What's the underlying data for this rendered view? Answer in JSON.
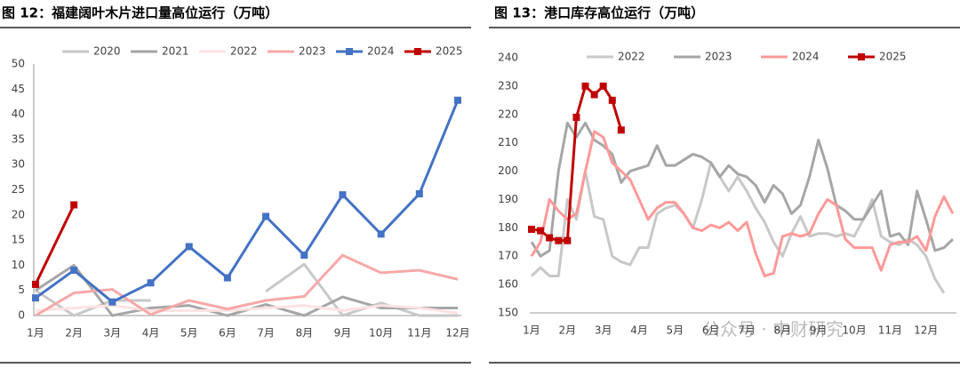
{
  "watermark": "公众号 · 中财研究",
  "chart_data": [
    {
      "type": "line",
      "title": "图 12：福建阔叶木片进口量高位运行（万吨）",
      "categories": [
        "1月",
        "2月",
        "3月",
        "4月",
        "5月",
        "6月",
        "7月",
        "8月",
        "9月",
        "10月",
        "11月",
        "12月"
      ],
      "ylim": [
        0,
        50
      ],
      "yticks": [
        0,
        5,
        10,
        15,
        20,
        25,
        30,
        35,
        40,
        45,
        50
      ],
      "grid": false,
      "legend": "top",
      "series": [
        {
          "name": "2020",
          "color": "#c8c8c8",
          "values": [
            5,
            0,
            3,
            3,
            null,
            null,
            4.8,
            10.2,
            0,
            2.5,
            0,
            0
          ]
        },
        {
          "name": "2021",
          "color": "#a6a6a6",
          "values": [
            5,
            10,
            0,
            1.5,
            2,
            0,
            2.2,
            0,
            3.7,
            1.5,
            1.5,
            1.5
          ]
        },
        {
          "name": "2022",
          "color": "#fde2e2",
          "values": [
            1,
            1.5,
            2,
            1,
            1,
            1,
            1.5,
            2,
            1,
            2,
            1.5,
            0.5
          ]
        },
        {
          "name": "2023",
          "color": "#f7a8a8",
          "values": [
            0,
            4.5,
            5.2,
            0.2,
            3,
            1.3,
            3,
            3.8,
            12,
            8.5,
            9,
            7.2
          ]
        },
        {
          "name": "2024",
          "color": "#4472c4",
          "marker": "square",
          "values": [
            3.5,
            9,
            2.7,
            6.5,
            13.7,
            7.5,
            19.7,
            12,
            24,
            16.2,
            24.2,
            42.8
          ]
        },
        {
          "name": "2025",
          "color": "#c00000",
          "marker": "square",
          "values": [
            6.2,
            22,
            null,
            null,
            null,
            null,
            null,
            null,
            null,
            null,
            null,
            null
          ]
        }
      ]
    },
    {
      "type": "line",
      "title": "图 13：港口库存高位运行（万吨）",
      "categories": [
        "1月",
        null,
        null,
        null,
        "2月",
        null,
        null,
        null,
        "3月",
        null,
        null,
        null,
        "4月",
        null,
        null,
        null,
        "5月",
        null,
        null,
        null,
        "6月",
        null,
        null,
        null,
        "7月",
        null,
        null,
        null,
        "8月",
        null,
        null,
        null,
        "9月",
        null,
        null,
        null,
        "10月",
        null,
        null,
        null,
        "11月",
        null,
        null,
        null,
        "12月",
        null,
        null,
        null
      ],
      "ylim": [
        150,
        240
      ],
      "yticks": [
        150,
        160,
        170,
        180,
        190,
        200,
        210,
        220,
        230,
        240
      ],
      "grid": false,
      "legend": "top",
      "series": [
        {
          "name": "2022",
          "color": "#c8c8c8",
          "values": [
            163,
            166,
            163,
            163,
            190,
            183,
            200,
            184,
            183,
            170,
            168,
            167,
            173,
            173,
            185,
            187,
            188,
            185,
            180,
            190,
            203,
            198,
            193,
            198,
            193,
            187,
            182,
            175,
            170,
            178,
            184,
            177,
            178,
            178,
            177,
            178,
            177,
            183,
            190,
            177,
            175,
            174,
            176,
            174,
            170,
            162,
            157,
            null
          ]
        },
        {
          "name": "2023",
          "color": "#a6a6a6",
          "values": [
            175,
            170,
            172,
            200,
            217,
            212,
            217,
            211,
            209,
            206,
            196,
            200,
            201,
            202,
            209,
            202,
            202,
            204,
            206,
            205,
            203,
            198,
            202,
            199,
            198,
            195,
            189,
            195,
            192,
            185,
            188,
            198,
            211,
            201,
            188,
            186,
            183,
            183,
            188,
            193,
            177,
            178,
            174,
            193,
            183,
            172,
            173,
            176
          ]
        },
        {
          "name": "2024",
          "color": "#ff9999",
          "values": [
            170,
            175,
            190,
            186,
            183,
            185,
            200,
            214,
            212,
            203,
            200,
            197,
            190,
            183,
            187,
            189,
            189,
            185,
            180,
            179,
            181,
            180,
            182,
            179,
            182,
            171,
            163,
            164,
            177,
            178,
            177,
            178,
            185,
            190,
            188,
            176,
            173,
            173,
            173,
            165,
            174,
            175,
            175,
            177,
            172,
            184,
            191,
            185
          ]
        },
        {
          "name": "2025",
          "color": "#c00000",
          "marker": "square",
          "values": [
            179.5,
            179,
            176.5,
            175.5,
            175.5,
            219,
            230,
            227,
            230,
            225,
            214.5,
            null,
            null,
            null,
            null,
            null,
            null,
            null,
            null,
            null,
            null,
            null,
            null,
            null,
            null,
            null,
            null,
            null,
            null,
            null,
            null,
            null,
            null,
            null,
            null,
            null,
            null,
            null,
            null,
            null,
            null,
            null,
            null,
            null,
            null,
            null,
            null,
            null
          ]
        }
      ]
    }
  ]
}
